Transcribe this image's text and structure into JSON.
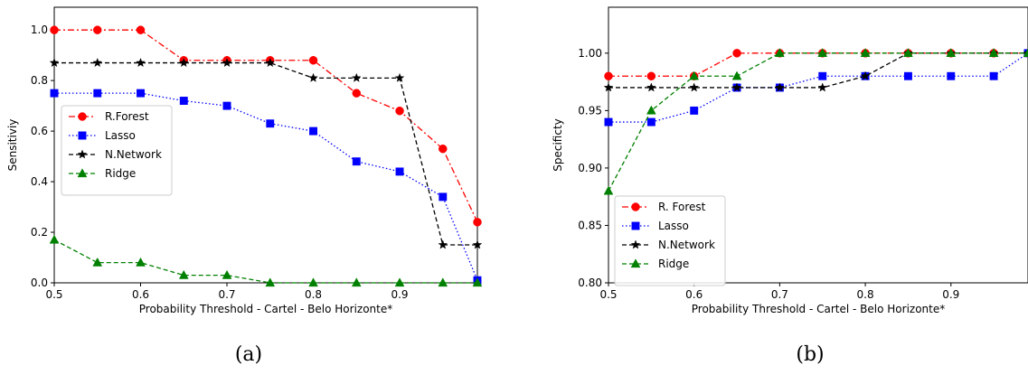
{
  "chart_data": [
    {
      "type": "line",
      "caption": "(a)",
      "xlabel": "Probability Threshold - Cartel - Belo Horizonte*",
      "ylabel": "Sensitiviy",
      "xlim": [
        0.5,
        0.99
      ],
      "ylim": [
        0.0,
        1.09
      ],
      "xticks": [
        "0.5",
        "0.6",
        "0.7",
        "0.8",
        "0.9"
      ],
      "yticks": [
        "0.0",
        "0.2",
        "0.4",
        "0.6",
        "0.8",
        "1.0"
      ],
      "grid": false,
      "legend_position": "center-left",
      "x": [
        0.5,
        0.55,
        0.6,
        0.65,
        0.7,
        0.75,
        0.8,
        0.85,
        0.9,
        0.95,
        0.99
      ],
      "series": [
        {
          "name": "R.Forest",
          "color": "#ff0000",
          "marker": "circle",
          "dash": "7,3,2,3",
          "values": [
            1.0,
            1.0,
            1.0,
            0.88,
            0.88,
            0.88,
            0.88,
            0.75,
            0.68,
            0.53,
            0.24
          ]
        },
        {
          "name": "Lasso",
          "color": "#0000ff",
          "marker": "square",
          "dash": "1.5,2.5",
          "values": [
            0.75,
            0.75,
            0.75,
            0.72,
            0.7,
            0.63,
            0.6,
            0.48,
            0.44,
            0.34,
            0.01
          ]
        },
        {
          "name": "N.Network",
          "color": "#000000",
          "marker": "star",
          "dash": "5,3",
          "values": [
            0.87,
            0.87,
            0.87,
            0.87,
            0.87,
            0.87,
            0.81,
            0.81,
            0.81,
            0.15,
            0.15
          ]
        },
        {
          "name": "Ridge",
          "color": "#008000",
          "marker": "triangle",
          "dash": "5,3",
          "values": [
            0.17,
            0.08,
            0.08,
            0.03,
            0.03,
            0.0,
            0.0,
            0.0,
            0.0,
            0.0,
            0.0
          ]
        }
      ]
    },
    {
      "type": "line",
      "caption": "(b)",
      "xlabel": "Probability Threshold - Cartel  - Belo Horizonte*",
      "ylabel": "Specificty",
      "xlim": [
        0.5,
        0.99
      ],
      "ylim": [
        0.8,
        1.04
      ],
      "xticks": [
        "0.5",
        "0.6",
        "0.7",
        "0.8",
        "0.9"
      ],
      "yticks": [
        "0.80",
        "0.85",
        "0.90",
        "0.95",
        "1.00"
      ],
      "grid": false,
      "legend_position": "lower-left",
      "x": [
        0.5,
        0.55,
        0.6,
        0.65,
        0.7,
        0.75,
        0.8,
        0.85,
        0.9,
        0.95,
        0.99
      ],
      "series": [
        {
          "name": "R. Forest",
          "color": "#ff0000",
          "marker": "circle",
          "dash": "7,3,2,3",
          "values": [
            0.98,
            0.98,
            0.98,
            1.0,
            1.0,
            1.0,
            1.0,
            1.0,
            1.0,
            1.0,
            1.0
          ]
        },
        {
          "name": "Lasso",
          "color": "#0000ff",
          "marker": "square",
          "dash": "1.5,2.5",
          "values": [
            0.94,
            0.94,
            0.95,
            0.97,
            0.97,
            0.98,
            0.98,
            0.98,
            0.98,
            0.98,
            1.0
          ]
        },
        {
          "name": "N.Network",
          "color": "#000000",
          "marker": "star",
          "dash": "5,3",
          "values": [
            0.97,
            0.97,
            0.97,
            0.97,
            0.97,
            0.97,
            0.98,
            1.0,
            1.0,
            1.0,
            1.0
          ]
        },
        {
          "name": "Ridge",
          "color": "#008000",
          "marker": "triangle",
          "dash": "5,3",
          "values": [
            0.88,
            0.95,
            0.98,
            0.98,
            1.0,
            1.0,
            1.0,
            1.0,
            1.0,
            1.0,
            1.0
          ]
        }
      ]
    }
  ]
}
